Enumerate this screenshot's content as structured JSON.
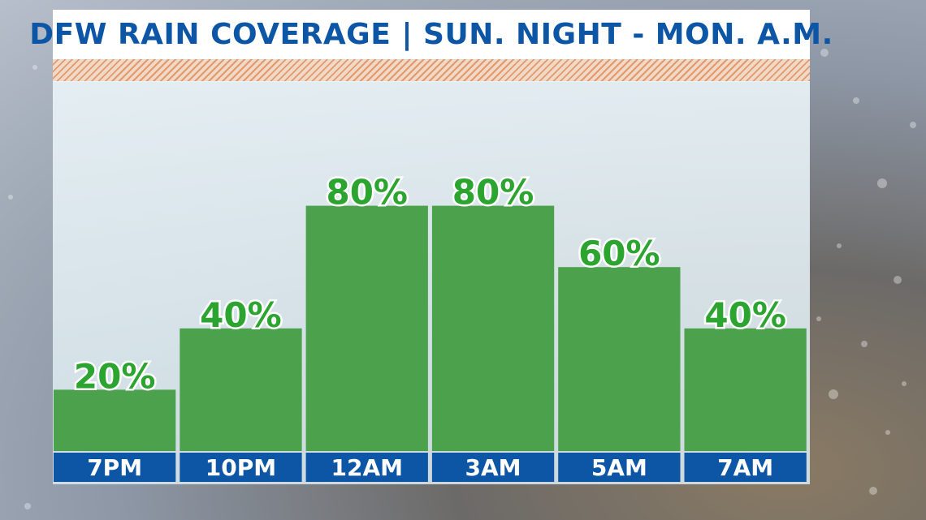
{
  "chart_data": {
    "type": "bar",
    "title": "DFW RAIN COVERAGE | SUN. NIGHT - MON. A.M.",
    "categories": [
      "7PM",
      "10PM",
      "12AM",
      "3AM",
      "5AM",
      "7AM"
    ],
    "values": [
      20,
      40,
      80,
      80,
      60,
      40
    ],
    "value_labels": [
      "20%",
      "40%",
      "80%",
      "80%",
      "60%",
      "40%"
    ],
    "xlabel": "",
    "ylabel": "",
    "ylim": [
      0,
      100
    ],
    "grid": false,
    "legend": "none",
    "colors": {
      "bar": "#4ca24c",
      "value_label": "#2ba52f",
      "category_band": "#0d56a6",
      "title_text": "#0d56a6",
      "stripe": "#e3996b"
    }
  }
}
